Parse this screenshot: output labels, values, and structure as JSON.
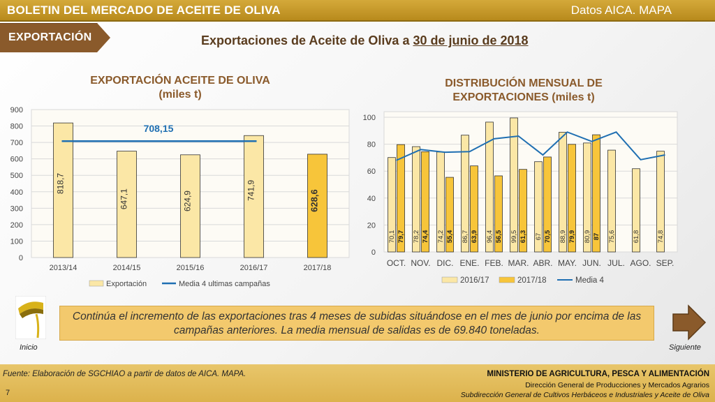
{
  "header": {
    "title": "BOLETIN DEL MERCADO DE ACEITE DE OLIVA",
    "source": "Datos AICA. MAPA"
  },
  "section_tag": "EXPORTACIÓN",
  "headline": {
    "prefix": "Exportaciones de Aceite de Oliva a ",
    "date": "30 de junio de 2018"
  },
  "chart_data": [
    {
      "type": "bar",
      "title": "EXPORTACIÓN ACEITE DE OLIVA",
      "subtitle": "(miles t)",
      "categories": [
        "2013/14",
        "2014/15",
        "2015/16",
        "2016/17",
        "2017/18"
      ],
      "series": [
        {
          "name": "Exportación",
          "values": [
            818.7,
            647.1,
            624.9,
            741.9,
            628.6
          ],
          "labels": [
            "818,7",
            "647,1",
            "624,9",
            "741,9",
            "628,6"
          ]
        },
        {
          "name": "Media 4 ultimas campañas",
          "type": "line",
          "value": 708.15,
          "label": "708,15"
        }
      ],
      "ylim": [
        0,
        900
      ],
      "yticks": [
        "0",
        "100",
        "200",
        "300",
        "400",
        "500",
        "600",
        "700",
        "800",
        "900"
      ],
      "grid": true,
      "legend": "bottom",
      "colors": {
        "bar": "#fbe7a6",
        "bar_highlight": "#f7c53a",
        "line": "#1f6fb2"
      }
    },
    {
      "type": "bar",
      "title": "DISTRIBUCIÓN MENSUAL DE",
      "title2": "EXPORTACIONES",
      "subtitle": "(miles t)",
      "categories": [
        "OCT.",
        "NOV.",
        "DIC.",
        "ENE.",
        "FEB.",
        "MAR.",
        "ABR.",
        "MAY.",
        "JUN.",
        "JUL.",
        "AGO.",
        "SEP."
      ],
      "series": [
        {
          "name": "2016/17",
          "values": [
            70.1,
            78.2,
            74.2,
            86.7,
            96.4,
            99.5,
            67,
            88.9,
            80.9,
            75.6,
            61.8,
            74.8
          ],
          "labels": [
            "70,1",
            "78,2",
            "74,2",
            "86,7",
            "96,4",
            "99,5",
            "67",
            "88,9",
            "80,9",
            "75,6",
            "61,8",
            "74,8"
          ]
        },
        {
          "name": "2017/18",
          "values": [
            79.7,
            74.4,
            55.4,
            63.9,
            56.5,
            61.3,
            70.5,
            79.9,
            87,
            null,
            null,
            null
          ],
          "labels": [
            "79,7",
            "74,4",
            "55,4",
            "63,9",
            "56,5",
            "61,3",
            "70,5",
            "79,9",
            "87",
            "",
            "",
            ""
          ]
        },
        {
          "name": "Media 4",
          "type": "line",
          "values": [
            68,
            76,
            74,
            74.5,
            84,
            86,
            72,
            89,
            82,
            89,
            68.5,
            72
          ]
        }
      ],
      "ylim": [
        0,
        100
      ],
      "yticks": [
        "0",
        "20",
        "40",
        "60",
        "80",
        "100"
      ],
      "grid": true,
      "legend": "bottom",
      "colors": {
        "bar_a": "#fbe7a6",
        "bar_b": "#f7c53a",
        "line": "#1f6fb2"
      }
    }
  ],
  "note": "Continúa el incremento de las exportaciones tras 4 meses de subidas situándose en el mes de junio por encima de las campañas anteriores. La media mensual de salidas es de 69.840 toneladas.",
  "nav": {
    "prev": "Inicio",
    "next": "Siguiente"
  },
  "footer": {
    "source": "Fuente: Elaboración de SGCHIAO a partir de datos de AICA. MAPA.",
    "page": "7",
    "ministry": "MINISTERIO DE AGRICULTURA, PESCA Y ALIMENTACIÓN",
    "dg": "Dirección General de Producciones y Mercados Agrarios",
    "sdg": "Subdirección General de Cultivos Herbáceos e Industriales y Aceite de Oliva"
  }
}
